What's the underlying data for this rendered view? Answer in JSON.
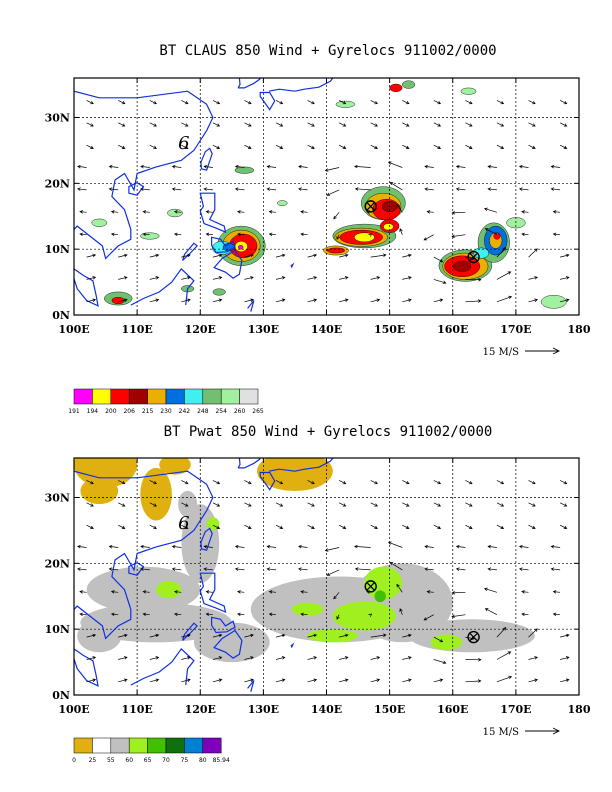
{
  "panels": [
    {
      "id": "claus",
      "title": "BT CLAUS 850 Wind + Gyrelocs 911002/0000",
      "lat_ticks": [
        "0N",
        "10N",
        "20N",
        "30N"
      ],
      "lon_ticks": [
        "100E",
        "110E",
        "120E",
        "130E",
        "140E",
        "150E",
        "160E",
        "170E",
        "180"
      ],
      "scale_label": "15 M/S",
      "colorbar_labels": [
        "191",
        "194",
        "200",
        "206",
        "215",
        "230",
        "242",
        "248",
        "254",
        "260",
        "265"
      ],
      "colorbar_colors": [
        "#ff00ff",
        "#ffff00",
        "#ff0000",
        "#a00000",
        "#e8b000",
        "#0070e0",
        "#40f0f0",
        "#70c070",
        "#a0f0a0",
        "#e0e0e0"
      ],
      "storm_marks": [
        {
          "lon": 147.0,
          "lat": 16.5
        },
        {
          "lon": 163.3,
          "lat": 8.8
        }
      ]
    },
    {
      "id": "pwat",
      "title": "BT Pwat 850 Wind + Gyrelocs 911002/0000",
      "lat_ticks": [
        "0N",
        "10N",
        "20N",
        "30N"
      ],
      "lon_ticks": [
        "100E",
        "110E",
        "120E",
        "130E",
        "140E",
        "150E",
        "160E",
        "170E",
        "180"
      ],
      "scale_label": "15 M/S",
      "colorbar_labels": [
        "0",
        "25",
        "55",
        "60",
        "65",
        "70",
        "75",
        "80",
        "85.94"
      ],
      "colorbar_colors": [
        "#e0b010",
        "#ffffff",
        "#c0c0c0",
        "#a0f020",
        "#40c000",
        "#107010",
        "#0080d0",
        "#8000c0"
      ],
      "storm_marks": [
        {
          "lon": 147.0,
          "lat": 16.5
        },
        {
          "lon": 163.3,
          "lat": 8.8
        }
      ]
    }
  ],
  "map_extent": {
    "lon": [
      100,
      180
    ],
    "lat": [
      0,
      36
    ]
  }
}
